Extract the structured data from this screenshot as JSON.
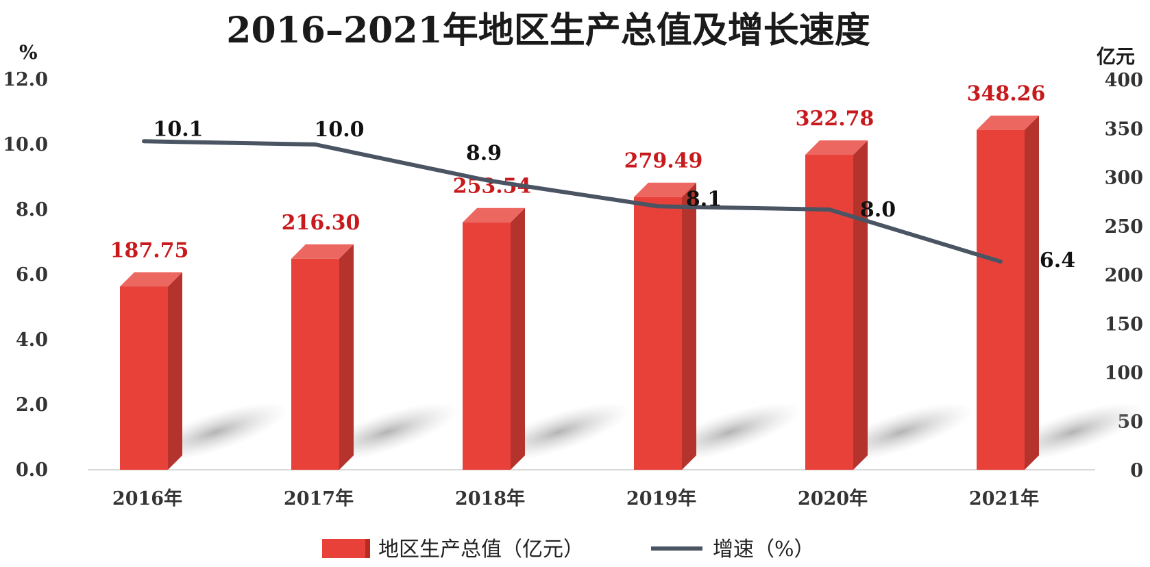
{
  "chart_data": {
    "type": "bar",
    "title": "2016–2021年地区生产总值及增长速度",
    "categories": [
      "2016年",
      "2017年",
      "2018年",
      "2019年",
      "2020年",
      "2021年"
    ],
    "series": [
      {
        "name": "地区生产总值（亿元）",
        "type": "bar",
        "axis": "right",
        "values": [
          187.75,
          216.3,
          253.54,
          279.49,
          322.78,
          348.26
        ],
        "labels": [
          "187.75",
          "216.30",
          "253.54",
          "279.49",
          "322.78",
          "348.26"
        ],
        "color": "#e8413a"
      },
      {
        "name": "增速（%）",
        "type": "line",
        "axis": "left",
        "values": [
          10.1,
          10.0,
          8.9,
          8.1,
          8.0,
          6.4
        ],
        "labels": [
          "10.1",
          "10.0",
          "8.9",
          "8.1",
          "8.0",
          "6.4"
        ],
        "color": "#4a5463"
      }
    ],
    "left_axis": {
      "unit": "%",
      "ylim": [
        0,
        12
      ],
      "ticks": [
        "0.0",
        "2.0",
        "4.0",
        "6.0",
        "8.0",
        "10.0",
        "12.0"
      ]
    },
    "right_axis": {
      "unit": "亿元",
      "ylim": [
        0,
        400
      ],
      "ticks": [
        "0",
        "50",
        "100",
        "150",
        "200",
        "250",
        "300",
        "350",
        "400"
      ]
    },
    "legend_position": "bottom-center",
    "grid": false
  }
}
